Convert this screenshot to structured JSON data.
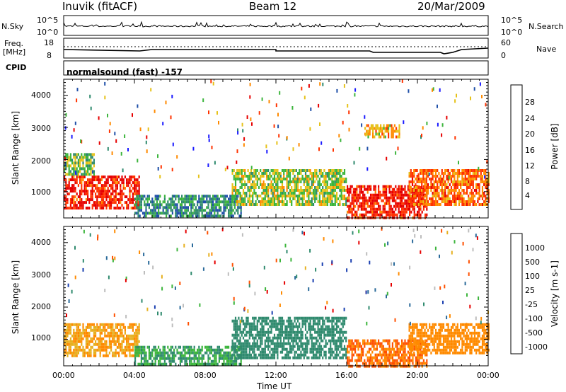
{
  "header": {
    "station": "Inuvik (fitACF)",
    "beam": "Beam 12",
    "date": "20/Mar/2009"
  },
  "top_panels": {
    "nsky_label": "N.Sky",
    "nsearch_label": "N.Search",
    "nsky_ticks": [
      "10^5",
      "10^0"
    ],
    "nsearch_ticks": [
      "10^5",
      "10^0"
    ],
    "freq_label_1": "Freq.",
    "freq_label_2": "[MHz]",
    "freq_ticks": [
      "18",
      "8"
    ],
    "nave_label": "Nave",
    "nave_ticks": [
      "60",
      "0"
    ],
    "cpid_label": "CPID",
    "cpid_text": "normalsound (fast) -157"
  },
  "x_axis": {
    "label": "Time UT",
    "ticks": [
      "00:00",
      "04:00",
      "08:00",
      "12:00",
      "16:00",
      "20:00",
      "00:00"
    ]
  },
  "power_panel": {
    "y_label": "Slant Range [km]",
    "y_ticks": [
      "4000",
      "3000",
      "2000",
      "1000"
    ],
    "colorbar_label": "Power [dB]",
    "colorbar_ticks": [
      "28",
      "24",
      "20",
      "16",
      "12",
      "8",
      "4"
    ],
    "colors": [
      "#1a1aff",
      "#1f4fa8",
      "#2f8a6e",
      "#3cb53c",
      "#e6c21a",
      "#ff8a00",
      "#ff3300",
      "#e60000"
    ]
  },
  "velocity_panel": {
    "y_label": "Slant Range [km]",
    "y_ticks": [
      "4000",
      "3000",
      "2000",
      "1000"
    ],
    "colorbar_label": "Velocity [m s-1]",
    "colorbar_ticks": [
      "1000",
      "500",
      "100",
      "25",
      "-25",
      "-100",
      "-500",
      "-1000"
    ],
    "colors": [
      "#1a3fb0",
      "#2a6a9a",
      "#2f8a6e",
      "#3cb53c",
      "#bdbdbd",
      "#e6b020",
      "#ff8a00",
      "#ff5000",
      "#e60000"
    ]
  },
  "chart_data": {
    "type": "heatmap",
    "x": [
      "00:00",
      "02:00",
      "04:00",
      "06:00",
      "08:00",
      "10:00",
      "12:00",
      "14:00",
      "16:00",
      "18:00",
      "20:00",
      "22:00",
      "24:00"
    ],
    "ylim": [
      180,
      4500
    ],
    "power_echo_bands": [
      {
        "t0": 0.0,
        "t1": 4.3,
        "r0": 500,
        "r1": 1500,
        "power": 28
      },
      {
        "t0": 0.0,
        "t1": 1.7,
        "r0": 1500,
        "r1": 2200,
        "power": 14
      },
      {
        "t0": 4.0,
        "t1": 10.0,
        "r0": 200,
        "r1": 900,
        "power": 10
      },
      {
        "t0": 9.5,
        "t1": 16.0,
        "r0": 600,
        "r1": 1700,
        "power": 16
      },
      {
        "t0": 16.0,
        "t1": 20.5,
        "r0": 200,
        "r1": 1200,
        "power": 28
      },
      {
        "t0": 19.5,
        "t1": 24.0,
        "r0": 600,
        "r1": 1700,
        "power": 24
      },
      {
        "t0": 17.0,
        "t1": 19.0,
        "r0": 2700,
        "r1": 3100,
        "power": 20
      }
    ],
    "velocity_echo_bands": [
      {
        "t0": 0.0,
        "t1": 4.3,
        "r0": 500,
        "r1": 1500,
        "velocity": -100
      },
      {
        "t0": 4.0,
        "t1": 10.0,
        "r0": 200,
        "r1": 800,
        "velocity": 100
      },
      {
        "t0": 9.5,
        "t1": 16.0,
        "r0": 400,
        "r1": 1700,
        "velocity": 200
      },
      {
        "t0": 16.0,
        "t1": 20.5,
        "r0": 200,
        "r1": 1000,
        "velocity": -300
      },
      {
        "t0": 19.5,
        "t1": 24.0,
        "r0": 600,
        "r1": 1500,
        "velocity": -200
      }
    ]
  }
}
